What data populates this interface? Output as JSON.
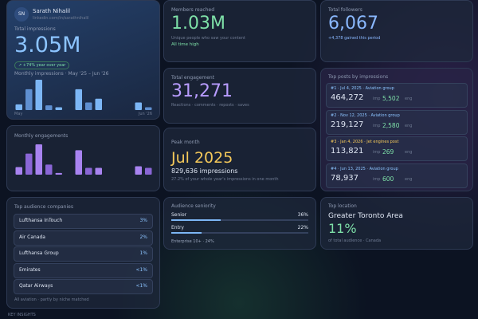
{
  "profile": {
    "initials": "SN",
    "name": "Sarath Nihalil",
    "subtitle": "linkedin.com/in/sarathnihalil"
  },
  "impressions": {
    "label": "Total impressions",
    "value": "3.05M",
    "change": "↗ +74% year over year",
    "chart_title": "Monthly impressions · May '25 – Jun '26",
    "chart": {
      "values": [
        6,
        22,
        32,
        5,
        3,
        0,
        22,
        8,
        12,
        0,
        0,
        0,
        8,
        3
      ],
      "start_label": "May",
      "end_label": "Jun '26"
    }
  },
  "engagements_chart": {
    "title": "Monthly engagements",
    "values": [
      9,
      25,
      36,
      12,
      2,
      0,
      29,
      8,
      8,
      0,
      0,
      0,
      10,
      8
    ]
  },
  "members": {
    "label": "Members reached",
    "value": "1.03M",
    "note": "Unique people who saw your content",
    "badge": "All time high"
  },
  "followers": {
    "label": "Total followers",
    "value": "6,067",
    "note": "+4,378 gained this period"
  },
  "engagement": {
    "label": "Total engagement",
    "value": "31,271",
    "note": "Reactions · comments · reposts · saves"
  },
  "peak": {
    "label": "Peak month",
    "value": "Jul 2025",
    "impressions": "829,636 impressions",
    "note": "27.2% of your whole year's impressions in one month"
  },
  "top_posts": {
    "title": "Top posts by impressions",
    "posts": [
      {
        "label": "#1 · Jul 4, 2025 · Aviation group",
        "impressions": "464,272",
        "imp_unit": "imp",
        "engagements": "5,502",
        "eng_unit": "eng"
      },
      {
        "label": "#2 · Nov 12, 2025 · Aviation group",
        "impressions": "219,127",
        "imp_unit": "imp",
        "engagements": "2,580",
        "eng_unit": "eng"
      },
      {
        "label": "#3 · Jan 4, 2026 · Jet engines post",
        "impressions": "113,821",
        "imp_unit": "imp",
        "engagements": "269",
        "eng_unit": "eng"
      },
      {
        "label": "#4 · Jun 13, 2025 · Aviation group",
        "impressions": "78,937",
        "imp_unit": "imp",
        "engagements": "600",
        "eng_unit": "eng"
      }
    ]
  },
  "companies": {
    "title": "Top audience companies",
    "rows": [
      {
        "name": "Lufthansa InTouch",
        "share": "3%"
      },
      {
        "name": "Air Canada",
        "share": "2%"
      },
      {
        "name": "Lufthansa Group",
        "share": "1%"
      },
      {
        "name": "Emirates",
        "share": "<1%"
      },
      {
        "name": "Qatar Airways",
        "share": "<1%"
      }
    ],
    "note": "All aviation · partly by niche matched"
  },
  "seniority": {
    "title": "Audience seniority",
    "rows": [
      {
        "name": "Senior",
        "value": 36,
        "label": "36%"
      },
      {
        "name": "Entry",
        "value": 22,
        "label": "22%"
      }
    ],
    "note": "Enterprise 10+ · 24%"
  },
  "location": {
    "title": "Top location",
    "value": "Greater Toronto Area",
    "share": "11%",
    "note": "of total audience · Canada"
  },
  "footer": "KEY INSIGHTS"
}
